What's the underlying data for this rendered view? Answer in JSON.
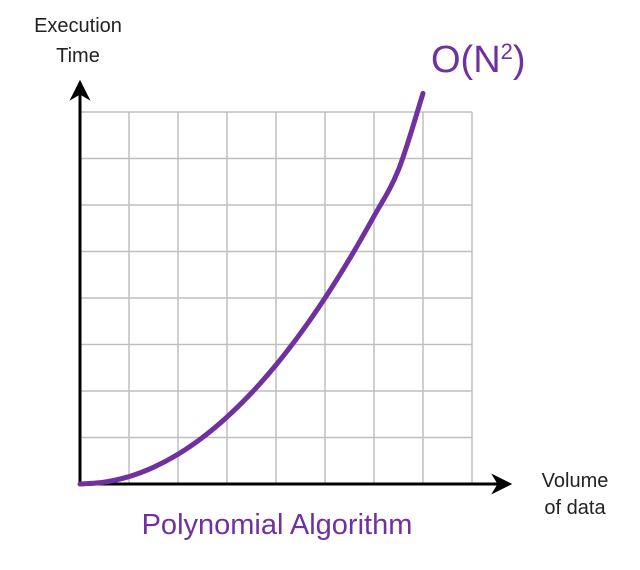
{
  "chart_data": {
    "type": "line",
    "title": "Polynomial Algorithm",
    "ylabel_lines": [
      "Execution",
      "Time"
    ],
    "xlabel_lines": [
      "Volume",
      "of data"
    ],
    "series": [
      {
        "name": "O(N2)",
        "label_main": "O(N",
        "label_sup": "2",
        "label_end": ")",
        "x": [
          0,
          0.5,
          1,
          1.5,
          2,
          2.5,
          3,
          3.5,
          4,
          4.5,
          5,
          5.5,
          6,
          6.5,
          7
        ],
        "values": [
          0,
          0.04,
          0.16,
          0.36,
          0.64,
          1.0,
          1.44,
          1.96,
          2.56,
          3.24,
          4.0,
          4.84,
          5.76,
          6.76,
          8.4
        ]
      }
    ],
    "xlim": [
      0,
      8
    ],
    "ylim": [
      0,
      8
    ],
    "grid": true,
    "x_ticks": [],
    "y_ticks": []
  },
  "colors": {
    "curve": "#7030a0",
    "grid": "#bfbfbf",
    "axis": "#000000"
  }
}
